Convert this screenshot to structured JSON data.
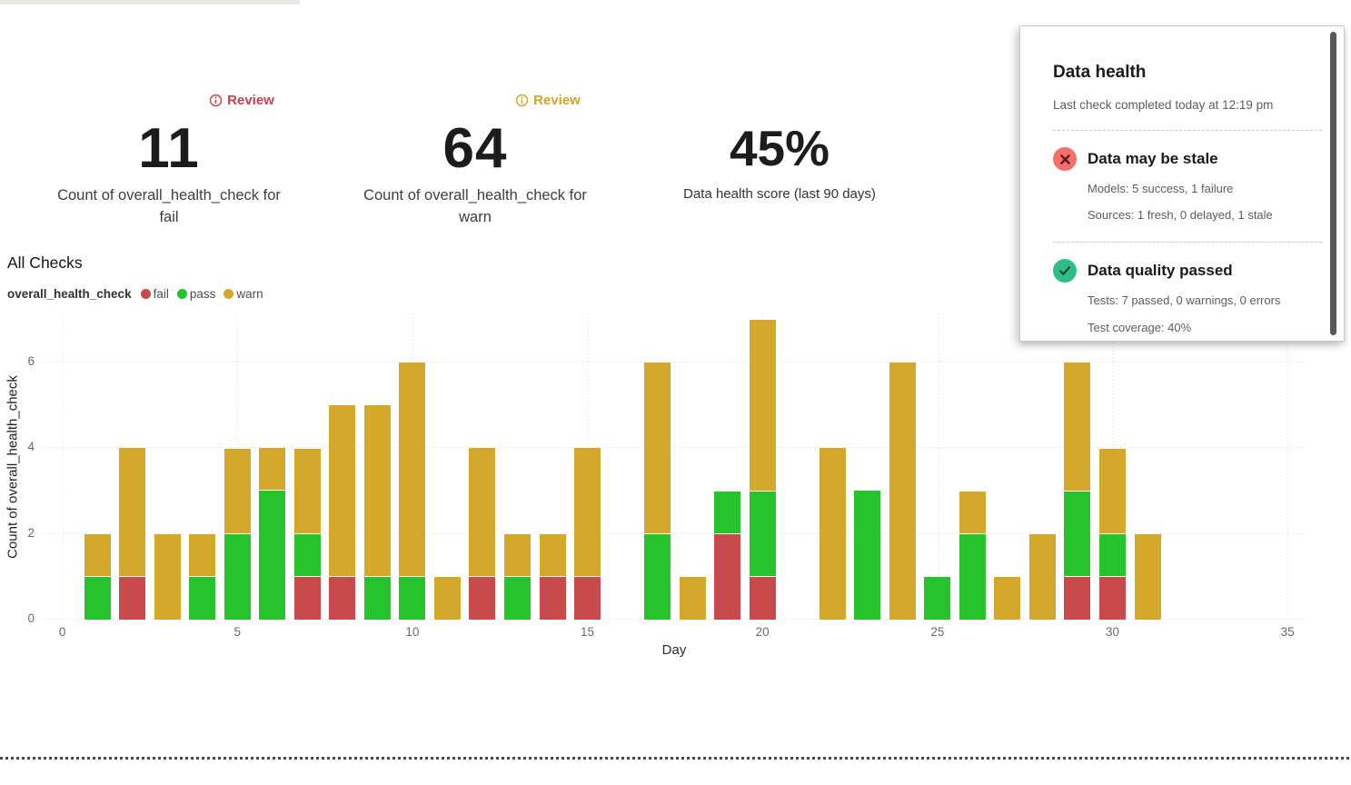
{
  "metrics": [
    {
      "badge": "Review",
      "value": "11",
      "label": "Count of overall_health_check for fail"
    },
    {
      "badge": "Review",
      "value": "64",
      "label": "Count of overall_health_check for warn"
    },
    {
      "value": "45%",
      "label": "Data health score (last 90 days)"
    }
  ],
  "section_title": "All Checks",
  "chart_data": {
    "type": "bar",
    "stacked": true,
    "legend_title": "overall_health_check",
    "title": "All Checks",
    "xlabel": "Day",
    "ylabel": "Count of overall_health_check",
    "xlim": [
      0,
      35.5
    ],
    "ylim": [
      0,
      7
    ],
    "xticks": [
      0,
      5,
      10,
      15,
      20,
      25,
      30,
      35
    ],
    "yticks": [
      0,
      2,
      4,
      6
    ],
    "grid": "dotted",
    "legend_position": "top-left",
    "x": [
      1,
      2,
      3,
      4,
      5,
      6,
      7,
      8,
      9,
      10,
      11,
      12,
      13,
      14,
      15,
      16,
      17,
      18,
      19,
      20,
      21,
      22,
      23,
      24,
      25,
      26,
      27,
      28,
      29,
      30,
      31
    ],
    "series": [
      {
        "name": "fail",
        "color": "#c94a4d",
        "values": [
          0,
          1,
          0,
          0,
          0,
          0,
          1,
          1,
          0,
          0,
          0,
          1,
          0,
          1,
          1,
          0,
          0,
          0,
          2,
          1,
          0,
          0,
          0,
          0,
          0,
          0,
          0,
          0,
          1,
          1,
          0
        ]
      },
      {
        "name": "pass",
        "color": "#26c32c",
        "values": [
          1,
          0,
          0,
          1,
          2,
          3,
          1,
          0,
          1,
          1,
          0,
          0,
          1,
          0,
          0,
          0,
          2,
          0,
          1,
          2,
          0,
          0,
          3,
          0,
          1,
          2,
          0,
          0,
          2,
          1,
          0
        ]
      },
      {
        "name": "warn",
        "color": "#d4a92b",
        "values": [
          1,
          3,
          2,
          1,
          2,
          1,
          2,
          4,
          4,
          5,
          1,
          3,
          1,
          1,
          3,
          0,
          4,
          1,
          0,
          4,
          0,
          4,
          0,
          6,
          0,
          1,
          1,
          2,
          3,
          2,
          2
        ]
      }
    ]
  },
  "panel": {
    "title": "Data health",
    "subtitle": "Last check completed today at 12:19 pm",
    "sections": [
      {
        "icon": "x-circle-icon",
        "icon_color": "#f3706a",
        "glyph_color": "#5e1d1d",
        "title": "Data may be stale",
        "lines": [
          "Models: 5 success, 1 failure",
          "Sources: 1 fresh, 0 delayed, 1 stale"
        ]
      },
      {
        "icon": "check-circle-icon",
        "icon_color": "#2ebe87",
        "glyph_color": "#1c4637",
        "title": "Data quality passed",
        "lines": [
          "Tests: 7 passed, 0 warnings, 0 errors",
          "Test coverage: 40%"
        ]
      }
    ]
  },
  "colors": {
    "review_fail": "#c5414b",
    "review_warn": "#d2a42a",
    "gridline": "#d9d9d9",
    "scrollbar": "#575757"
  }
}
